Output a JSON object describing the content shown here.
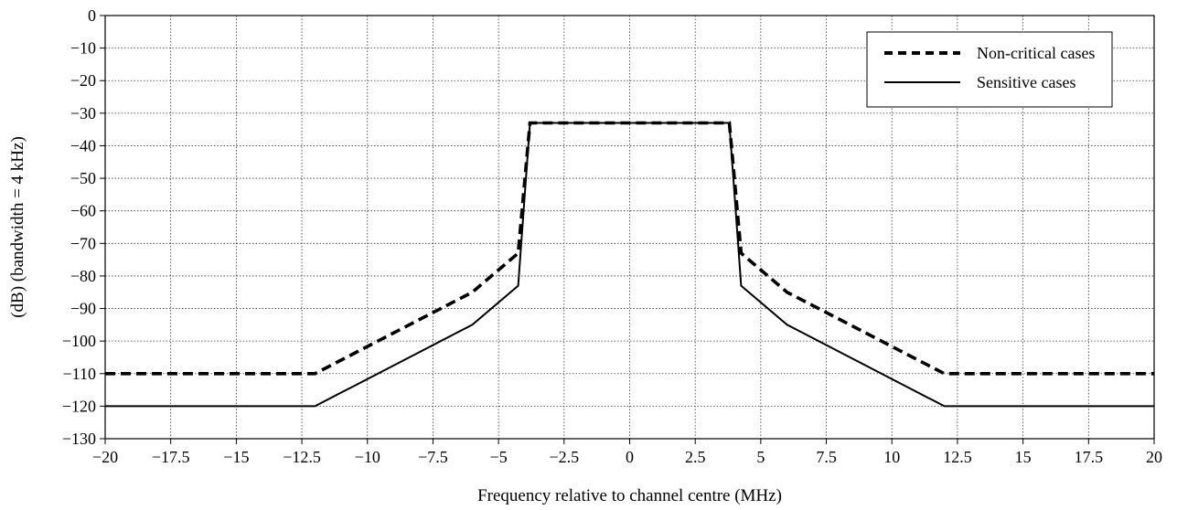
{
  "chart_data": {
    "type": "line",
    "title": "",
    "xlabel": "Frequency relative to channel centre (MHz)",
    "ylabel": "(dB)  (bandwidth = 4 kHz)",
    "xlim": [
      -20,
      20
    ],
    "ylim": [
      -130,
      0
    ],
    "x_ticks": [
      -20,
      -17.5,
      -15,
      -12.5,
      -10,
      -7.5,
      -5,
      -2.5,
      0,
      2.5,
      5,
      7.5,
      10,
      12.5,
      15,
      17.5,
      20
    ],
    "x_tick_labels": [
      "−20",
      "−17.5",
      "−15",
      "−12.5",
      "−10",
      "−7.5",
      "−5",
      "−2.5",
      "0",
      "2.5",
      "5",
      "7.5",
      "10",
      "12.5",
      "15",
      "17.5",
      "20"
    ],
    "y_ticks": [
      0,
      -10,
      -20,
      -30,
      -40,
      -50,
      -60,
      -70,
      -80,
      -90,
      -100,
      -110,
      -120,
      -130
    ],
    "y_tick_labels": [
      "0",
      "−10",
      "−20",
      "−30",
      "−40",
      "−50",
      "−60",
      "−70",
      "−80",
      "−90",
      "−100",
      "−110",
      "−120",
      "−130"
    ],
    "grid": true,
    "legend_position": "top-right",
    "series": [
      {
        "name": "Non-critical cases",
        "style": "dashed",
        "x": [
          -20,
          -12,
          -6,
          -4.25,
          -3.8,
          3.8,
          4.25,
          6,
          12,
          20
        ],
        "y": [
          -110,
          -110,
          -85,
          -73,
          -33,
          -33,
          -73,
          -85,
          -110,
          -110
        ]
      },
      {
        "name": "Sensitive cases",
        "style": "solid",
        "x": [
          -20,
          -12,
          -6,
          -4.25,
          -3.8,
          3.8,
          4.25,
          6,
          12,
          20
        ],
        "y": [
          -120,
          -120,
          -95,
          -83,
          -33,
          -33,
          -83,
          -95,
          -120,
          -120
        ]
      }
    ],
    "colors": {
      "line": "#000000",
      "grid": "#333333",
      "background": "#ffffff"
    }
  }
}
